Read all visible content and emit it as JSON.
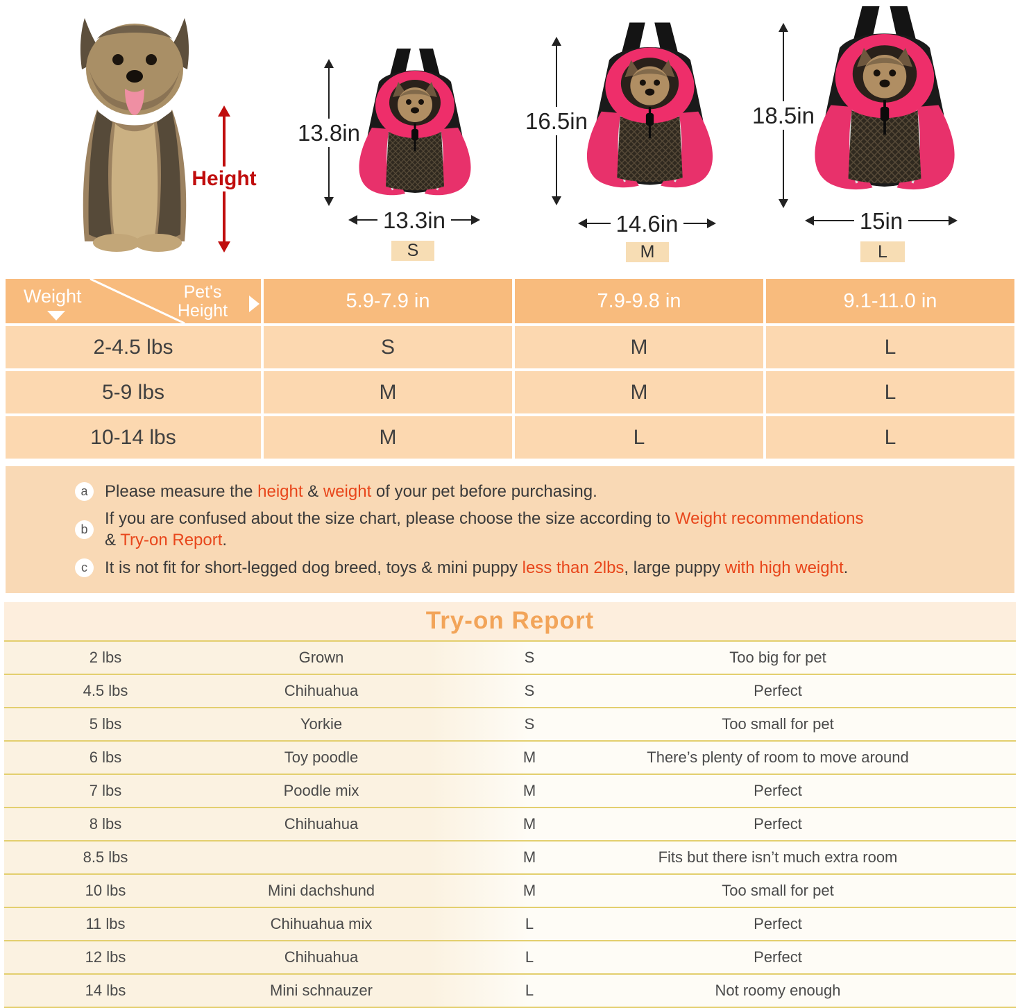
{
  "hero": {
    "height_label": "Height",
    "sizes": [
      {
        "badge": "S",
        "height": "13.8in",
        "width": "13.3in"
      },
      {
        "badge": "M",
        "height": "16.5in",
        "width": "14.6in"
      },
      {
        "badge": "L",
        "height": "18.5in",
        "width": "15in"
      }
    ]
  },
  "size_table": {
    "corner": {
      "row_label": "Weight",
      "col_label": "Pet's Height"
    },
    "columns": [
      "5.9-7.9 in",
      "7.9-9.8 in",
      "9.1-11.0 in"
    ],
    "rows": [
      {
        "weight": "2-4.5 lbs",
        "sizes": [
          "S",
          "M",
          "L"
        ]
      },
      {
        "weight": "5-9 lbs",
        "sizes": [
          "M",
          "M",
          "L"
        ]
      },
      {
        "weight": "10-14 lbs",
        "sizes": [
          "M",
          "L",
          "L"
        ]
      }
    ]
  },
  "notes": [
    {
      "bullet": "a",
      "lines": [
        [
          {
            "text": "Please measure the "
          },
          {
            "text": "height",
            "red": true
          },
          {
            "text": " & "
          },
          {
            "text": "weight",
            "red": true
          },
          {
            "text": " of your pet before purchasing."
          }
        ]
      ]
    },
    {
      "bullet": "b",
      "lines": [
        [
          {
            "text": "If you are confused about the size chart, please choose the size according to "
          },
          {
            "text": "Weight recommendations",
            "red": true
          }
        ],
        [
          {
            "text": "& "
          },
          {
            "text": "Try-on Report",
            "red": true
          },
          {
            "text": "."
          }
        ]
      ]
    },
    {
      "bullet": "c",
      "lines": [
        [
          {
            "text": "It is not fit for short-legged dog breed, toys & mini puppy "
          },
          {
            "text": "less than 2lbs",
            "red": true
          },
          {
            "text": ", large puppy "
          },
          {
            "text": "with high weight",
            "red": true
          },
          {
            "text": "."
          }
        ]
      ]
    }
  ],
  "tryon": {
    "title": "Try-on Report",
    "rows": [
      {
        "weight": "2 lbs",
        "breed": "Grown",
        "size": "S",
        "fit": "Too big for pet"
      },
      {
        "weight": "4.5 lbs",
        "breed": "Chihuahua",
        "size": "S",
        "fit": "Perfect"
      },
      {
        "weight": "5 lbs",
        "breed": "Yorkie",
        "size": "S",
        "fit": "Too small for pet"
      },
      {
        "weight": "6 lbs",
        "breed": "Toy poodle",
        "size": "M",
        "fit": "There’s plenty of room to move around"
      },
      {
        "weight": "7 lbs",
        "breed": "Poodle mix",
        "size": "M",
        "fit": "Perfect"
      },
      {
        "weight": "8 lbs",
        "breed": "Chihuahua",
        "size": "M",
        "fit": "Perfect"
      },
      {
        "weight": "8.5 lbs",
        "breed": "",
        "size": "M",
        "fit": "Fits but there isn’t much extra room"
      },
      {
        "weight": "10 lbs",
        "breed": "Mini dachshund",
        "size": "M",
        "fit": "Too small for pet"
      },
      {
        "weight": "11 lbs",
        "breed": "Chihuahua mix",
        "size": "L",
        "fit": "Perfect"
      },
      {
        "weight": "12 lbs",
        "breed": "Chihuahua",
        "size": "L",
        "fit": "Perfect"
      },
      {
        "weight": "14 lbs",
        "breed": "Mini schnauzer",
        "size": "L",
        "fit": "Not roomy enough"
      }
    ]
  },
  "colors": {
    "header_orange": "#f8bb7d",
    "cell_orange": "#fcd8b0",
    "notes_bg": "#f9d9b5",
    "band_bg": "#fdeedd",
    "row_cream": "#fbf2e1",
    "row_white": "#fefcf6",
    "separator": "#e3cf6e",
    "badge_bg": "#f7ddb4",
    "title_orange": "#f2a459",
    "red_accent": "#e8461b",
    "height_red": "#c00d0d",
    "pink": "#e8316b"
  },
  "icons": {
    "dimension_arrow": "css-triangle",
    "weight_down_triangle": "css-triangle",
    "pet_height_right_triangle": "css-triangle"
  }
}
